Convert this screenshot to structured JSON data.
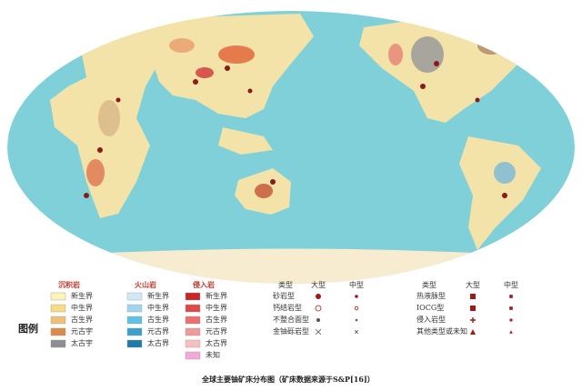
{
  "legend": {
    "title": "图例",
    "sedimentary": {
      "title": "沉积岩",
      "items": [
        "新生界",
        "中生界",
        "古生界",
        "元古宇",
        "太古宇"
      ]
    },
    "volcanic": {
      "title": "火山岩",
      "items": [
        "新生界",
        "中生界",
        "古生界",
        "元古界",
        "太古界"
      ]
    },
    "intrusive": {
      "title": "侵入岩",
      "items": [
        "新生界",
        "中生界",
        "古生界",
        "元古界",
        "太古界",
        "未知"
      ]
    },
    "deposits_left": {
      "header": [
        "类型",
        "大型",
        "中型"
      ],
      "rows": [
        "砂岩型",
        "钙结岩型",
        "不整合面型",
        "金铀砾岩型"
      ]
    },
    "deposits_right": {
      "header": [
        "类型",
        "大型",
        "中型"
      ],
      "rows": [
        "热液脉型",
        "IOCG型",
        "侵入岩型",
        "其他类型或未知"
      ]
    }
  },
  "caption": "全球主要铀矿床分布图（矿床数据来源于S&P[16]）"
}
